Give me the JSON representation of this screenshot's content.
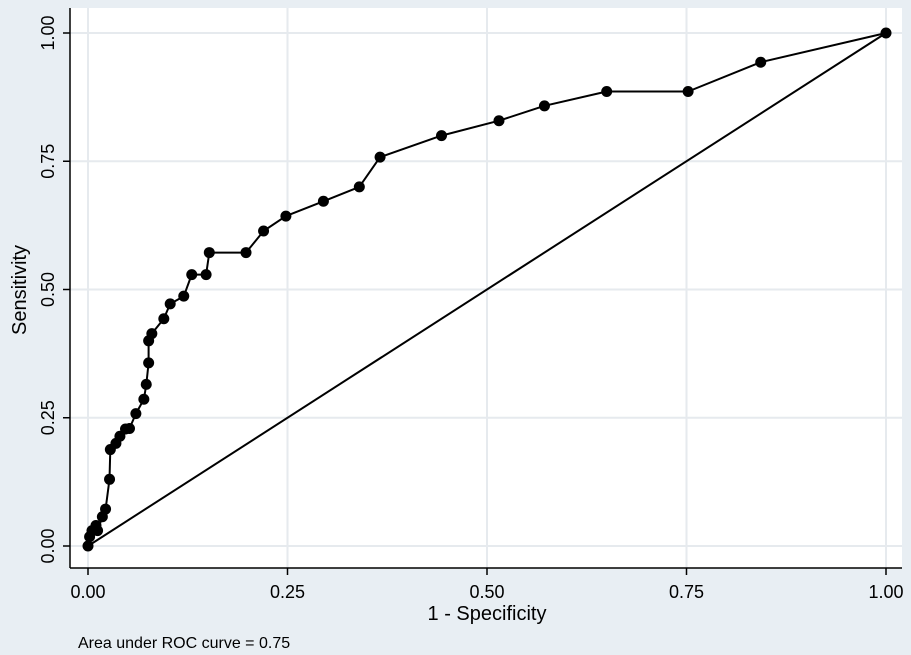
{
  "chart_data": {
    "type": "line",
    "xlabel": "1 - Specificity",
    "ylabel": "Sensitivity",
    "xlim": [
      0,
      1
    ],
    "ylim": [
      0,
      1
    ],
    "xticks": [
      "0.00",
      "0.25",
      "0.50",
      "0.75",
      "1.00"
    ],
    "yticks": [
      "0.00",
      "0.25",
      "0.50",
      "0.75",
      "1.00"
    ],
    "tick_values": [
      0,
      0.25,
      0.5,
      0.75,
      1
    ],
    "grid": true,
    "series": [
      {
        "style": "line-with-markers",
        "color": "#000000",
        "x": [
          0,
          0.002,
          0.005,
          0.01,
          0.012,
          0.018,
          0.022,
          0.027,
          0.028,
          0.035,
          0.04,
          0.047,
          0.052,
          0.06,
          0.07,
          0.073,
          0.076,
          0.076,
          0.08,
          0.095,
          0.103,
          0.12,
          0.13,
          0.148,
          0.152,
          0.198,
          0.22,
          0.248,
          0.295,
          0.34,
          0.366,
          0.443,
          0.515,
          0.572,
          0.65,
          0.752,
          0.843,
          1.0
        ],
        "y": [
          0,
          0.018,
          0.03,
          0.04,
          0.03,
          0.057,
          0.072,
          0.13,
          0.188,
          0.2,
          0.214,
          0.228,
          0.229,
          0.258,
          0.286,
          0.315,
          0.357,
          0.4,
          0.414,
          0.443,
          0.472,
          0.487,
          0.529,
          0.529,
          0.572,
          0.572,
          0.614,
          0.643,
          0.672,
          0.7,
          0.758,
          0.8,
          0.829,
          0.858,
          0.886,
          0.886,
          0.943,
          1.0
        ]
      },
      {
        "style": "reference-line",
        "color": "#000000",
        "x": [
          0,
          1
        ],
        "y": [
          0,
          1
        ]
      }
    ],
    "annotation": "Area under ROC curve = 0.75"
  }
}
